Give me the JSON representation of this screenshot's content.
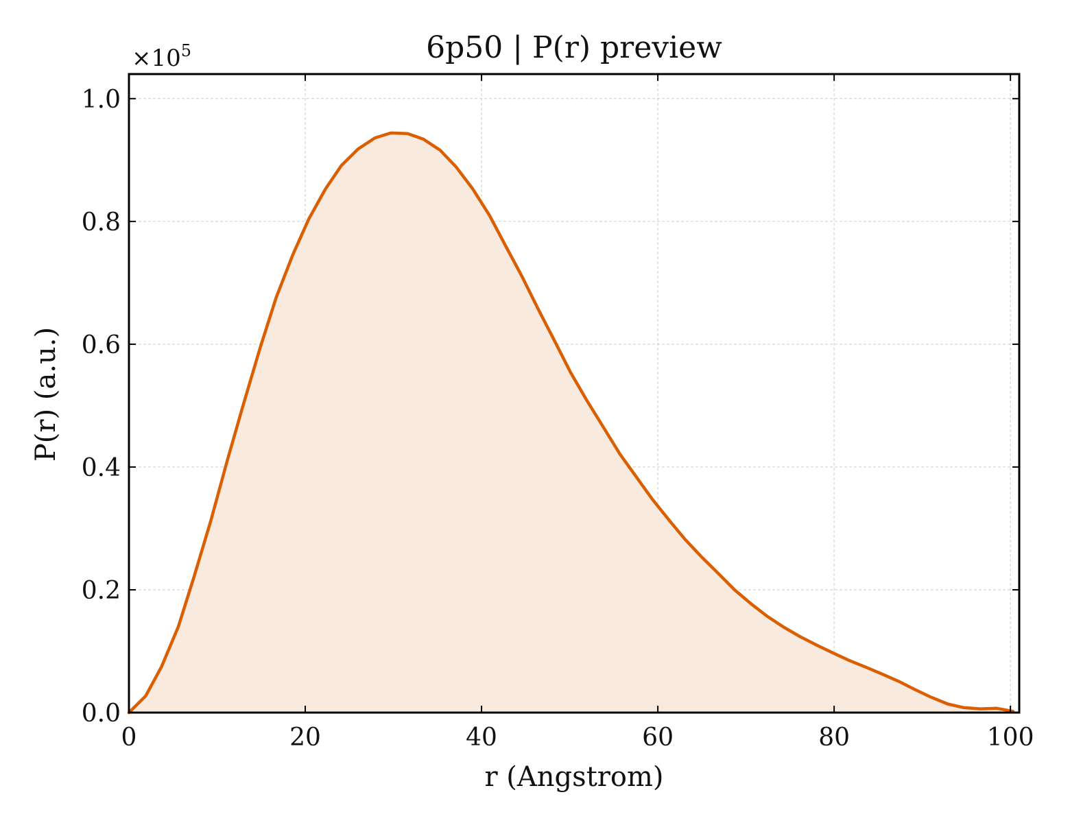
{
  "chart_data": {
    "type": "area",
    "title": "6p50 | P(r) preview",
    "xlabel": "r (Angstrom)",
    "ylabel": "P(r) (a.u.)",
    "y_multiplier_label": "×10",
    "y_multiplier_exponent": "5",
    "xlim": [
      0,
      101
    ],
    "ylim": [
      0,
      1.04
    ],
    "xticks": [
      0,
      20,
      40,
      60,
      80,
      100
    ],
    "xtick_labels": [
      "0",
      "20",
      "40",
      "60",
      "80",
      "100"
    ],
    "yticks": [
      0,
      0.2,
      0.4,
      0.6,
      0.8,
      1.0
    ],
    "ytick_labels": [
      "0.0",
      "0.2",
      "0.4",
      "0.6",
      "0.8",
      "1.0"
    ],
    "grid": true,
    "colors": {
      "line": "#d95f02",
      "fill": "#f9eadf"
    },
    "series": [
      {
        "x": [
          0,
          1.9,
          3.7,
          5.6,
          7.4,
          9.3,
          11.1,
          13.0,
          14.9,
          16.7,
          18.6,
          20.4,
          22.3,
          24.1,
          26.0,
          27.9,
          29.7,
          31.6,
          33.4,
          35.3,
          37.1,
          39.0,
          40.9,
          42.7,
          44.6,
          46.4,
          48.3,
          50.1,
          52.0,
          53.9,
          55.7,
          57.6,
          59.4,
          61.3,
          63.1,
          65.0,
          66.9,
          68.7,
          70.6,
          72.4,
          74.3,
          76.1,
          78.0,
          79.9,
          81.7,
          83.6,
          85.4,
          87.3,
          89.1,
          91.0,
          92.9,
          94.7,
          96.6,
          98.4,
          100.3
        ],
        "y": [
          0.0,
          0.027,
          0.075,
          0.14,
          0.222,
          0.313,
          0.408,
          0.503,
          0.595,
          0.676,
          0.746,
          0.804,
          0.853,
          0.891,
          0.918,
          0.936,
          0.944,
          0.943,
          0.934,
          0.916,
          0.889,
          0.853,
          0.81,
          0.761,
          0.71,
          0.658,
          0.605,
          0.554,
          0.507,
          0.463,
          0.421,
          0.383,
          0.347,
          0.313,
          0.282,
          0.253,
          0.226,
          0.2,
          0.177,
          0.157,
          0.139,
          0.124,
          0.11,
          0.097,
          0.085,
          0.074,
          0.063,
          0.051,
          0.038,
          0.025,
          0.014,
          0.008,
          0.006,
          0.007,
          0.002
        ]
      }
    ]
  }
}
